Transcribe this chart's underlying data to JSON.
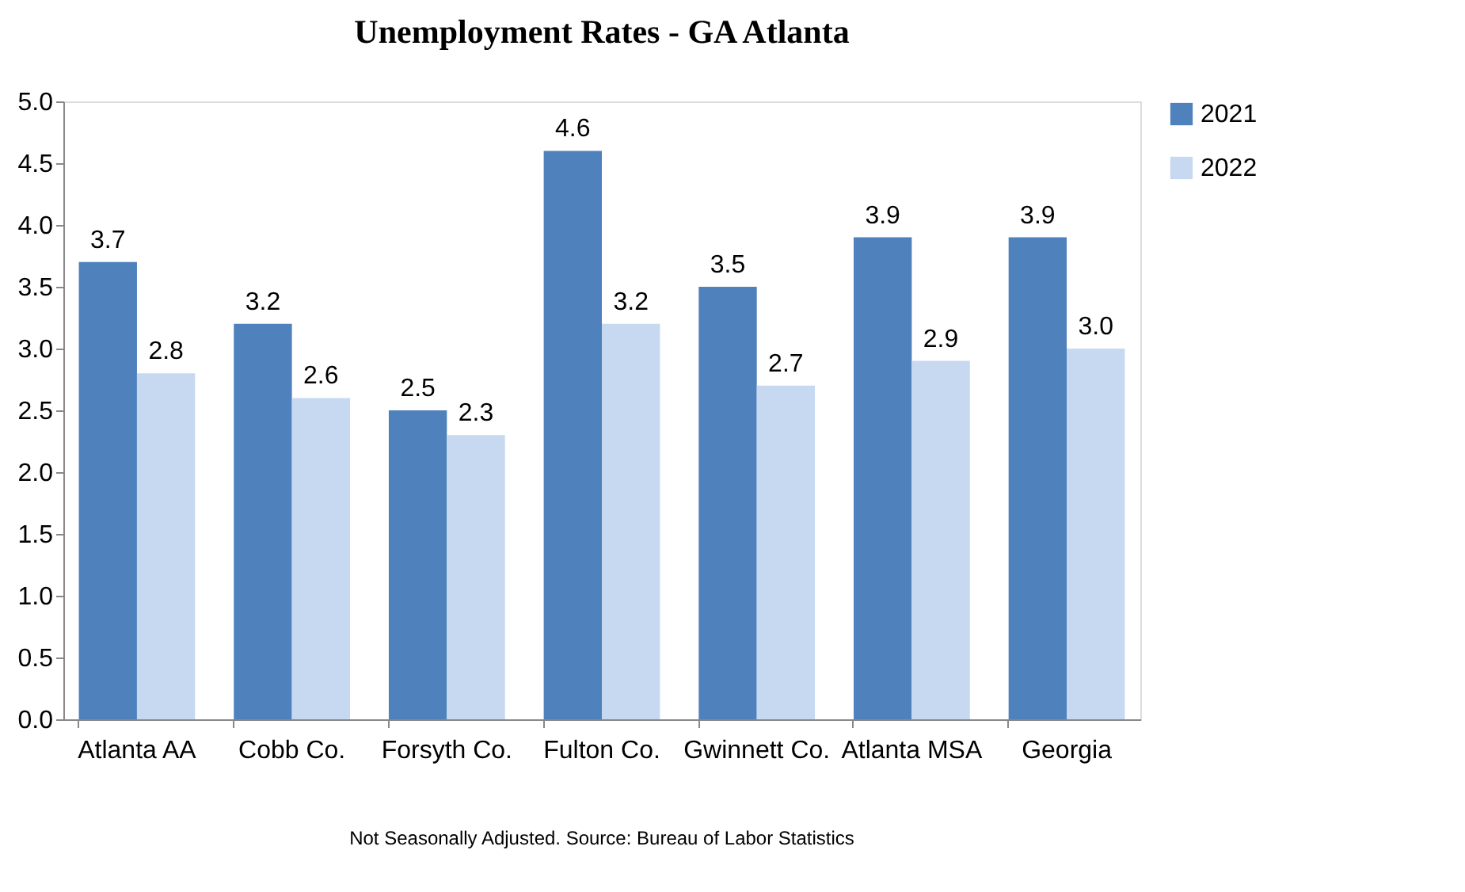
{
  "chart_data": {
    "type": "bar",
    "title": "Unemployment Rates - GA Atlanta",
    "categories": [
      "Atlanta AA",
      "Cobb Co.",
      "Forsyth Co.",
      "Fulton Co.",
      "Gwinnett Co.",
      "Atlanta MSA",
      "Georgia"
    ],
    "series": [
      {
        "name": "2021",
        "color": "#4f81bd",
        "values": [
          3.7,
          3.2,
          2.5,
          4.6,
          3.5,
          3.9,
          3.9
        ],
        "value_labels": [
          "3.7",
          "3.2",
          "2.5",
          "4.6",
          "3.5",
          "3.9",
          "3.9"
        ]
      },
      {
        "name": "2022",
        "color": "#c6d9f1",
        "values": [
          2.8,
          2.6,
          2.3,
          3.2,
          2.7,
          2.9,
          3.0
        ],
        "value_labels": [
          "2.8",
          "2.6",
          "2.3",
          "3.2",
          "2.7",
          "2.9",
          "3.0"
        ]
      }
    ],
    "ylim": [
      0,
      5
    ],
    "yticks": [
      {
        "value": 0,
        "label": "0.0"
      },
      0.5,
      {
        "value": 1,
        "label": "1.0"
      },
      1.5,
      {
        "value": 2,
        "label": "2.0"
      },
      2.5,
      {
        "value": 3,
        "label": "3.0"
      },
      3.5,
      {
        "value": 4,
        "label": "4.0"
      },
      4.5,
      {
        "value": 5,
        "label": "5.0"
      }
    ],
    "grid": false,
    "legend": "right",
    "annotations": [
      "Not Seasonally Adjusted.   Source: Bureau of Labor Statistics"
    ]
  }
}
